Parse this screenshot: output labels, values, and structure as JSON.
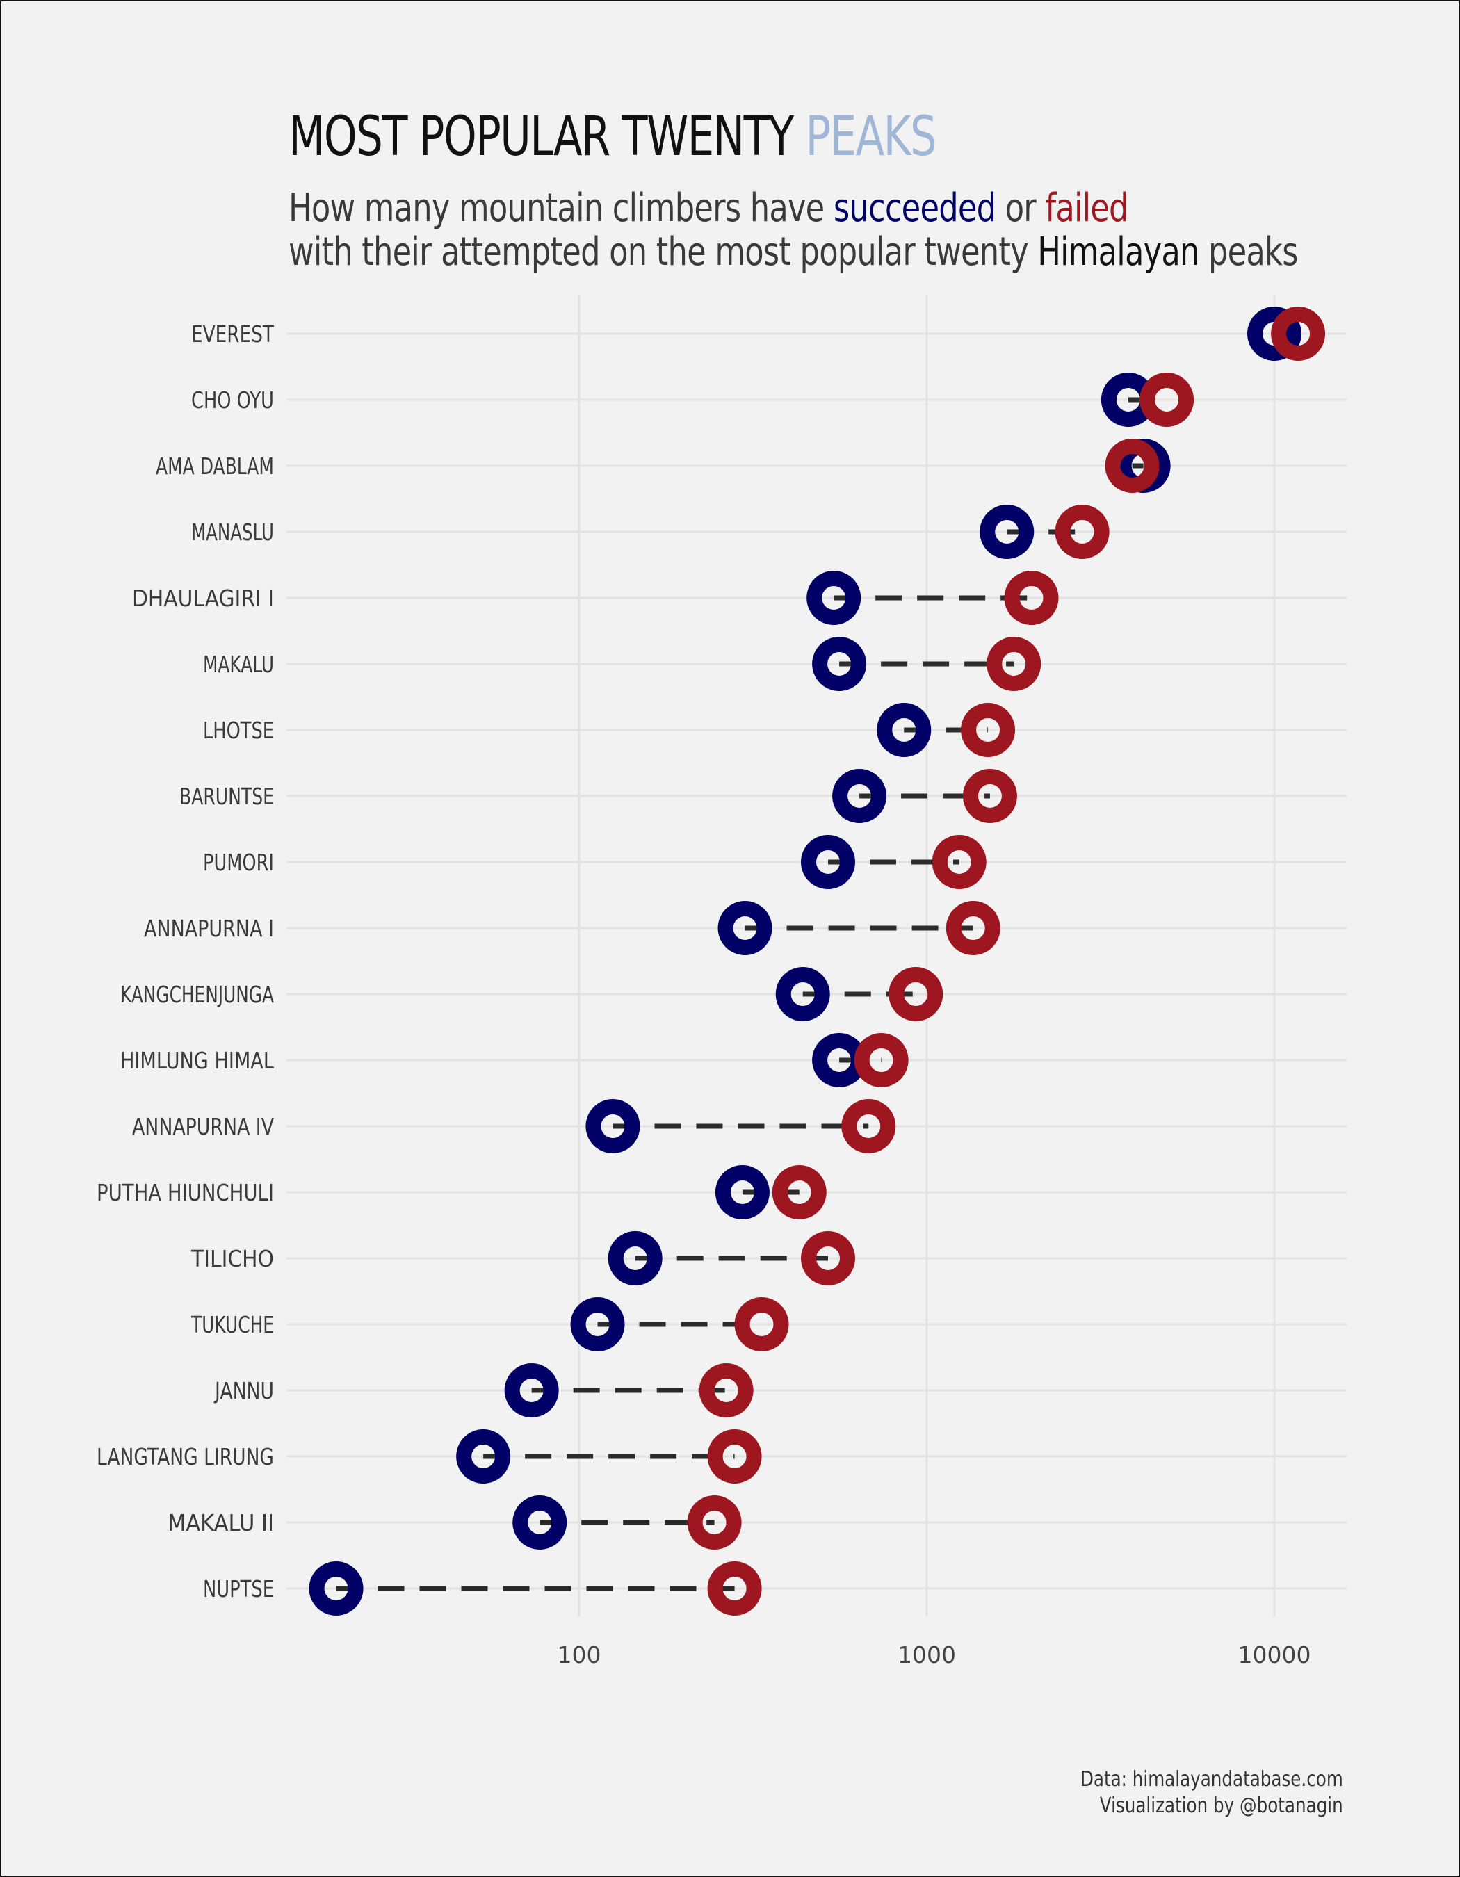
{
  "title": {
    "main": "MOST POPULAR TWENTY ",
    "accent": "PEAKS"
  },
  "subtitle": {
    "line1_a": "How many mountain climbers have ",
    "line1_succeeded": "succeeded",
    "line1_b": " or ",
    "line1_failed": "failed",
    "line2_a": "with their attempted on the most popular twenty ",
    "line2_himalayan": "Himalayan",
    "line2_b": " peaks"
  },
  "caption": {
    "line1": "Data: himalayandatabase.com",
    "line2": "Visualization by @botanagin"
  },
  "colors": {
    "succeeded": "#000066",
    "failed": "#9e1620",
    "background": "#f2f2f2",
    "grid": "#e2e2e2",
    "connector": "#2b2b2b"
  },
  "chart_data": {
    "type": "dumbbell",
    "x_scale": "log",
    "x_range": [
      14,
      16000
    ],
    "x_ticks": [
      {
        "value": 100,
        "label": "100"
      },
      {
        "value": 1000,
        "label": "1000"
      },
      {
        "value": 10000,
        "label": "10000"
      }
    ],
    "grid": true,
    "peaks": [
      {
        "name": "EVEREST",
        "succeeded": 10000,
        "failed": 11700
      },
      {
        "name": "CHO OYU",
        "succeeded": 3800,
        "failed": 4900
      },
      {
        "name": "AMA DABLAM",
        "succeeded": 4200,
        "failed": 3900
      },
      {
        "name": "MANASLU",
        "succeeded": 1700,
        "failed": 2800
      },
      {
        "name": "DHAULAGIRI I",
        "succeeded": 540,
        "failed": 2000
      },
      {
        "name": "MAKALU",
        "succeeded": 560,
        "failed": 1780
      },
      {
        "name": "LHOTSE",
        "succeeded": 860,
        "failed": 1500
      },
      {
        "name": "BARUNTSE",
        "succeeded": 640,
        "failed": 1520
      },
      {
        "name": "PUMORI",
        "succeeded": 520,
        "failed": 1240
      },
      {
        "name": "ANNAPURNA I",
        "succeeded": 300,
        "failed": 1360
      },
      {
        "name": "KANGCHENJUNGA",
        "succeeded": 440,
        "failed": 930
      },
      {
        "name": "HIMLUNG HIMAL",
        "succeeded": 560,
        "failed": 740
      },
      {
        "name": "ANNAPURNA IV",
        "succeeded": 125,
        "failed": 680
      },
      {
        "name": "PUTHA HIUNCHULI",
        "succeeded": 295,
        "failed": 430
      },
      {
        "name": "TILICHO",
        "succeeded": 145,
        "failed": 520
      },
      {
        "name": "TUKUCHE",
        "succeeded": 113,
        "failed": 335
      },
      {
        "name": "JANNU",
        "succeeded": 73,
        "failed": 265
      },
      {
        "name": "LANGTANG LIRUNG",
        "succeeded": 53,
        "failed": 280
      },
      {
        "name": "MAKALU II",
        "succeeded": 77,
        "failed": 245
      },
      {
        "name": "NUPTSE",
        "succeeded": 20,
        "failed": 280
      }
    ]
  }
}
